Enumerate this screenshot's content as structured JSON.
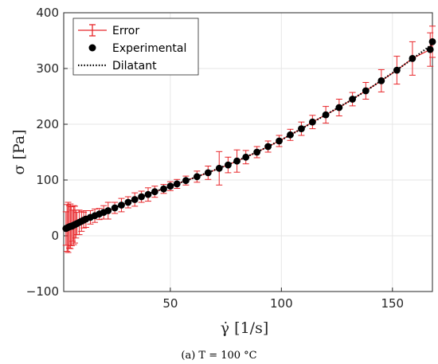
{
  "chart_data": {
    "type": "scatter",
    "title": "",
    "xlabel": "γ̇ [1/s]",
    "ylabel": "σ [Pa]",
    "xlim": [
      2,
      168
    ],
    "ylim": [
      -100,
      400
    ],
    "xticks": [
      50,
      100,
      150
    ],
    "yticks": [
      -100,
      0,
      100,
      200,
      300,
      400
    ],
    "x_tick_labels": [
      "50",
      "100",
      "150"
    ],
    "y_tick_labels": [
      "−100",
      "0",
      "100",
      "200",
      "300",
      "400"
    ],
    "grid": true,
    "legend_position": "top-left",
    "caption": "(a) T = 100 °C",
    "colors": {
      "error": "#e8262a",
      "experimental": "#000000",
      "dilatant": "#000000"
    },
    "series": [
      {
        "name": "Error",
        "kind": "errorbar",
        "points": [
          [
            3,
            13,
            30
          ],
          [
            3.5,
            14,
            42
          ],
          [
            4,
            15,
            45
          ],
          [
            4.5,
            16,
            38
          ],
          [
            5,
            17,
            40
          ],
          [
            5.5,
            17,
            35
          ],
          [
            6,
            18,
            28
          ],
          [
            6.5,
            19,
            35
          ],
          [
            7,
            20,
            33
          ],
          [
            7.5,
            21,
            25
          ],
          [
            8,
            22,
            20
          ],
          [
            9,
            24,
            22
          ],
          [
            10,
            26,
            18
          ],
          [
            11,
            28,
            14
          ],
          [
            12,
            30,
            15
          ],
          [
            14,
            33,
            12
          ],
          [
            16,
            36,
            12
          ],
          [
            18,
            39,
            10
          ],
          [
            20,
            42,
            12
          ],
          [
            22,
            45,
            15
          ],
          [
            25,
            50,
            10
          ],
          [
            28,
            55,
            12
          ],
          [
            31,
            60,
            10
          ],
          [
            34,
            65,
            12
          ],
          [
            37,
            70,
            10
          ],
          [
            40,
            74,
            12
          ],
          [
            43,
            79,
            10
          ],
          [
            47,
            84,
            8
          ],
          [
            50,
            89,
            8
          ],
          [
            53,
            93,
            8
          ],
          [
            57,
            99,
            8
          ],
          [
            62,
            106,
            10
          ],
          [
            67,
            113,
            12
          ],
          [
            72,
            121,
            30
          ],
          [
            76,
            127,
            14
          ],
          [
            80,
            134,
            20
          ],
          [
            84,
            141,
            12
          ],
          [
            89,
            150,
            10
          ],
          [
            94,
            160,
            10
          ],
          [
            99,
            170,
            10
          ],
          [
            104,
            181,
            10
          ],
          [
            109,
            192,
            12
          ],
          [
            114,
            204,
            12
          ],
          [
            120,
            217,
            15
          ],
          [
            126,
            230,
            15
          ],
          [
            132,
            245,
            12
          ],
          [
            138,
            260,
            15
          ],
          [
            145,
            278,
            20
          ],
          [
            152,
            297,
            25
          ],
          [
            159,
            318,
            30
          ],
          [
            167,
            334,
            30
          ],
          [
            168,
            348,
            28
          ]
        ]
      },
      {
        "name": "Experimental",
        "kind": "scatter",
        "points": [
          [
            3,
            13
          ],
          [
            3.5,
            14
          ],
          [
            4,
            15
          ],
          [
            4.5,
            16
          ],
          [
            5,
            17
          ],
          [
            5.5,
            17
          ],
          [
            6,
            18
          ],
          [
            6.5,
            19
          ],
          [
            7,
            20
          ],
          [
            7.5,
            21
          ],
          [
            8,
            22
          ],
          [
            9,
            24
          ],
          [
            10,
            26
          ],
          [
            11,
            28
          ],
          [
            12,
            30
          ],
          [
            14,
            33
          ],
          [
            16,
            36
          ],
          [
            18,
            39
          ],
          [
            20,
            42
          ],
          [
            22,
            45
          ],
          [
            25,
            50
          ],
          [
            28,
            55
          ],
          [
            31,
            60
          ],
          [
            34,
            65
          ],
          [
            37,
            70
          ],
          [
            40,
            74
          ],
          [
            43,
            79
          ],
          [
            47,
            84
          ],
          [
            50,
            89
          ],
          [
            53,
            93
          ],
          [
            57,
            99
          ],
          [
            62,
            106
          ],
          [
            67,
            113
          ],
          [
            72,
            121
          ],
          [
            76,
            127
          ],
          [
            80,
            134
          ],
          [
            84,
            141
          ],
          [
            89,
            150
          ],
          [
            94,
            160
          ],
          [
            99,
            170
          ],
          [
            104,
            181
          ],
          [
            109,
            192
          ],
          [
            114,
            204
          ],
          [
            120,
            217
          ],
          [
            126,
            230
          ],
          [
            132,
            245
          ],
          [
            138,
            260
          ],
          [
            145,
            278
          ],
          [
            152,
            297
          ],
          [
            159,
            318
          ],
          [
            167,
            334
          ],
          [
            168,
            348
          ]
        ]
      },
      {
        "name": "Dilatant",
        "kind": "line",
        "points": [
          [
            3,
            14
          ],
          [
            10,
            26
          ],
          [
            20,
            42
          ],
          [
            30,
            59
          ],
          [
            40,
            75
          ],
          [
            50,
            89
          ],
          [
            60,
            103
          ],
          [
            70,
            118
          ],
          [
            80,
            134
          ],
          [
            90,
            152
          ],
          [
            100,
            172
          ],
          [
            110,
            194
          ],
          [
            120,
            217
          ],
          [
            130,
            240
          ],
          [
            140,
            265
          ],
          [
            150,
            292
          ],
          [
            160,
            320
          ],
          [
            168,
            344
          ]
        ]
      }
    ]
  }
}
